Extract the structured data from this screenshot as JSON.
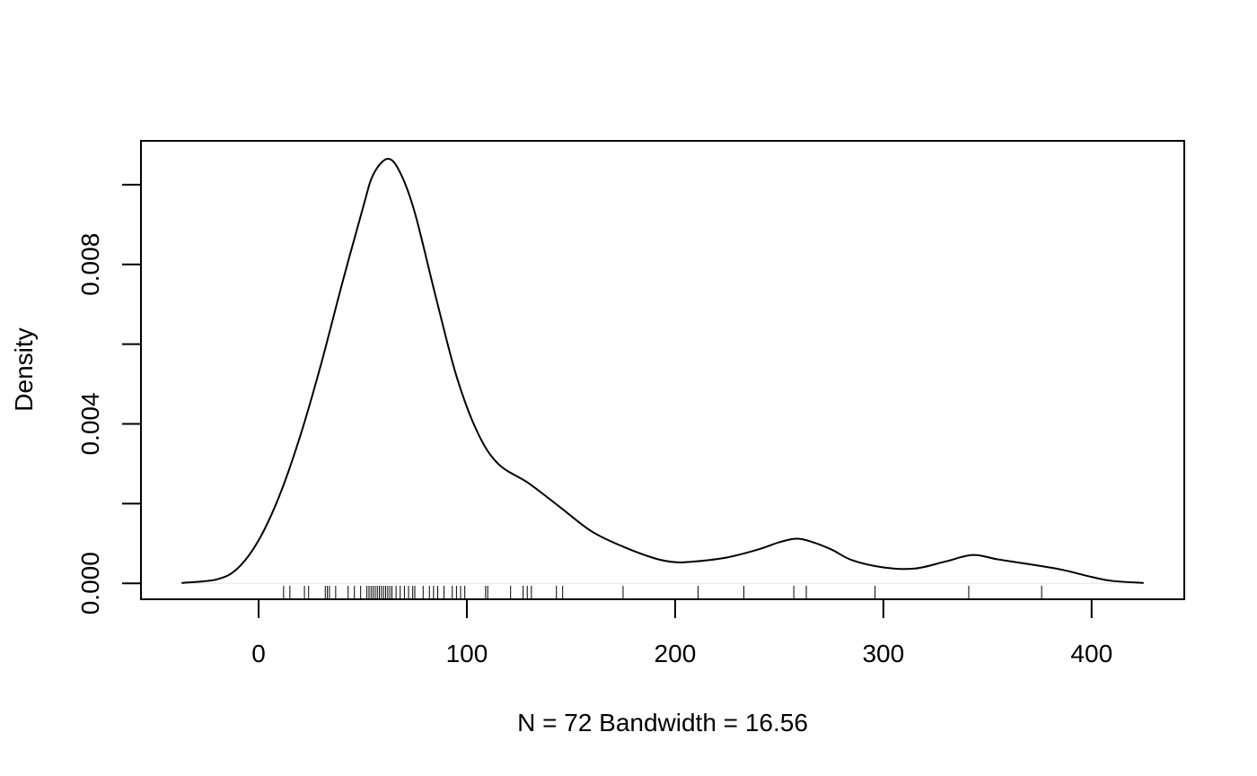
{
  "chart_data": {
    "type": "line",
    "title": "",
    "xlabel": "N = 72   Bandwidth = 16.56",
    "ylabel": "Density",
    "xlim": [
      -56.5,
      444.5
    ],
    "ylim": [
      -0.0004,
      0.0111
    ],
    "x_ticks": [
      0,
      100,
      200,
      300,
      400
    ],
    "x_tick_labels": [
      "0",
      "100",
      "200",
      "300",
      "400"
    ],
    "y_ticks": [
      0,
      0.002,
      0.004,
      0.006,
      0.008,
      0.01
    ],
    "y_tick_labels": [
      "0.000",
      "",
      "0.004",
      "",
      "0.008",
      ""
    ],
    "grid": false,
    "legend": "none",
    "baseline": 0,
    "series": [
      {
        "x": [
          -37,
          -20,
          -10,
          0,
          10,
          20,
          30,
          40,
          50,
          55,
          62,
          68,
          75,
          85,
          95,
          105,
          115,
          130,
          145,
          160,
          175,
          190,
          200,
          210,
          225,
          240,
          250,
          258,
          265,
          275,
          285,
          300,
          315,
          330,
          343,
          355,
          370,
          385,
          400,
          410,
          425
        ],
        "y": [
          1e-05,
          0.0001,
          0.00038,
          0.00108,
          0.0022,
          0.0037,
          0.0055,
          0.0075,
          0.0094,
          0.01025,
          0.01065,
          0.0103,
          0.0093,
          0.0072,
          0.0052,
          0.0038,
          0.003,
          0.0025,
          0.0019,
          0.0013,
          0.00092,
          0.00063,
          0.00053,
          0.00055,
          0.00065,
          0.00085,
          0.00103,
          0.00112,
          0.00105,
          0.00085,
          0.00058,
          0.0004,
          0.00037,
          0.00055,
          0.00071,
          0.0006,
          0.00048,
          0.00035,
          0.00016,
          6e-05,
          1e-05
        ]
      }
    ],
    "rug": [
      12,
      15,
      22,
      24,
      32,
      33,
      34,
      37,
      43,
      46,
      49,
      52,
      53,
      54,
      55,
      56,
      57,
      58,
      59,
      60,
      61,
      62,
      63,
      64,
      66,
      68,
      70,
      72,
      74,
      75,
      79,
      82,
      84,
      86,
      89,
      93,
      95,
      97,
      99,
      109,
      110,
      121,
      127,
      129,
      131,
      143,
      146,
      175,
      211,
      233,
      257,
      263,
      296,
      341,
      376
    ]
  }
}
